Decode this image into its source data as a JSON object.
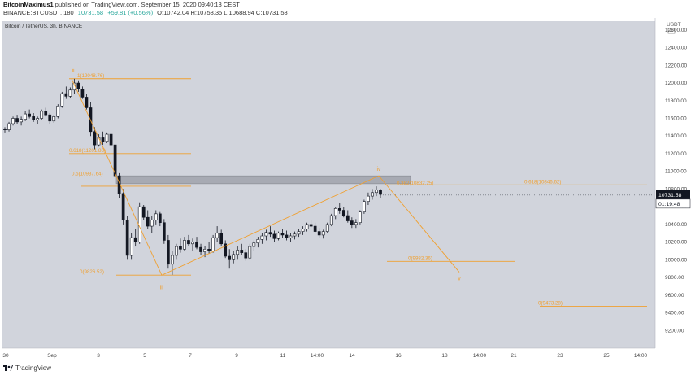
{
  "header": {
    "author": "BitcoinMaximus1",
    "published": "published on TradingView.com, September 15, 2020 09:40:13 CEST",
    "symbol": "BINANCE:BTCUSDT, 180",
    "price": "10731.58",
    "change": "+59.81 (+0.56%)",
    "ohlc": "O:10742.04 H:10758.35 L:10688.94 C:10731.58"
  },
  "chart_data": {
    "type": "candlestick",
    "title": "Bitcoin / TetherUS, 3h, BINANCE",
    "currency": "USDT",
    "ylim": [
      9000,
      12700
    ],
    "y_ticks": [
      "9200.00",
      "9400.00",
      "9600.00",
      "9800.00",
      "10000.00",
      "10200.00",
      "10400.00",
      "10600.00",
      "10800.00",
      "11000.00",
      "11200.00",
      "11400.00",
      "11600.00",
      "11800.00",
      "12000.00",
      "12200.00",
      "12400.00",
      "12600.00"
    ],
    "x_ticks": [
      "30",
      "Sep",
      "3",
      "5",
      "7",
      "9",
      "11",
      "14:00",
      "14",
      "16",
      "18",
      "14:00",
      "21",
      "23",
      "25",
      "14:00"
    ],
    "last_price": "10731.58",
    "countdown": "01:19:48",
    "colors": {
      "up": "#ffffff",
      "down": "#131722",
      "wick": "#131722",
      "fib": "#f0a030",
      "bg": "#d1d4dc"
    },
    "fib_levels": [
      {
        "label": "1(12048.76)",
        "price": 12048.76
      },
      {
        "label": "0.618(11201.86)",
        "price": 11201.86
      },
      {
        "label": "0.5(10937.64)",
        "price": 10937.64
      },
      {
        "label": "0(9826.52)",
        "price": 9826.52
      },
      {
        "label": "0.382(10832.25)",
        "price": 10832.25
      },
      {
        "label": "0.618(10846.62)",
        "price": 10846.62
      },
      {
        "label": "0(9982.36)",
        "price": 9982.36
      },
      {
        "label": "0(9473.28)",
        "price": 9473.28
      }
    ],
    "wave_labels": [
      "ii",
      "iii",
      "iv",
      "v"
    ],
    "resistance_zone": [
      10860,
      10950
    ],
    "candles": [
      [
        11480,
        11500,
        11440,
        11470
      ],
      [
        11470,
        11560,
        11450,
        11540
      ],
      [
        11540,
        11620,
        11520,
        11600
      ],
      [
        11600,
        11640,
        11540,
        11560
      ],
      [
        11560,
        11620,
        11520,
        11590
      ],
      [
        11590,
        11680,
        11570,
        11650
      ],
      [
        11650,
        11700,
        11600,
        11620
      ],
      [
        11620,
        11660,
        11560,
        11580
      ],
      [
        11580,
        11620,
        11540,
        11600
      ],
      [
        11600,
        11700,
        11580,
        11680
      ],
      [
        11680,
        11720,
        11620,
        11640
      ],
      [
        11640,
        11660,
        11540,
        11570
      ],
      [
        11570,
        11640,
        11550,
        11620
      ],
      [
        11620,
        11760,
        11600,
        11740
      ],
      [
        11740,
        11900,
        11720,
        11880
      ],
      [
        11880,
        11960,
        11820,
        11850
      ],
      [
        11850,
        11950,
        11830,
        11920
      ],
      [
        11920,
        12048,
        11880,
        12000
      ],
      [
        12000,
        12030,
        11900,
        11930
      ],
      [
        11930,
        11960,
        11820,
        11840
      ],
      [
        11840,
        11880,
        11700,
        11720
      ],
      [
        11720,
        11780,
        11400,
        11450
      ],
      [
        11450,
        11500,
        11250,
        11300
      ],
      [
        11300,
        11420,
        11280,
        11380
      ],
      [
        11380,
        11450,
        11300,
        11340
      ],
      [
        11340,
        11440,
        11320,
        11420
      ],
      [
        11420,
        11460,
        11280,
        11300
      ],
      [
        11300,
        11340,
        10900,
        10950
      ],
      [
        10950,
        10980,
        10700,
        10750
      ],
      [
        10750,
        10800,
        10400,
        10450
      ],
      [
        10450,
        10500,
        10000,
        10050
      ],
      [
        10050,
        10300,
        10000,
        10250
      ],
      [
        10250,
        10350,
        10150,
        10200
      ],
      [
        10200,
        10650,
        10180,
        10600
      ],
      [
        10600,
        10620,
        10450,
        10480
      ],
      [
        10480,
        10560,
        10350,
        10380
      ],
      [
        10380,
        10500,
        10300,
        10450
      ],
      [
        10450,
        10560,
        10400,
        10520
      ],
      [
        10520,
        10540,
        10380,
        10420
      ],
      [
        10420,
        10460,
        10180,
        10220
      ],
      [
        10220,
        10280,
        9900,
        9950
      ],
      [
        9950,
        10100,
        9830,
        10050
      ],
      [
        10050,
        10180,
        10000,
        10150
      ],
      [
        10150,
        10240,
        10080,
        10120
      ],
      [
        10120,
        10260,
        10100,
        10220
      ],
      [
        10220,
        10280,
        10150,
        10180
      ],
      [
        10180,
        10240,
        10100,
        10200
      ],
      [
        10200,
        10260,
        10120,
        10140
      ],
      [
        10140,
        10180,
        10050,
        10090
      ],
      [
        10090,
        10160,
        10030,
        10120
      ],
      [
        10120,
        10200,
        10070,
        10100
      ],
      [
        10100,
        10280,
        10080,
        10250
      ],
      [
        10250,
        10380,
        10200,
        10300
      ],
      [
        10300,
        10340,
        10150,
        10180
      ],
      [
        10180,
        10220,
        10020,
        10040
      ],
      [
        10040,
        10120,
        9900,
        10000
      ],
      [
        10000,
        10100,
        9960,
        10060
      ],
      [
        10060,
        10150,
        10000,
        10110
      ],
      [
        10110,
        10180,
        10050,
        10080
      ],
      [
        10080,
        10120,
        9990,
        10020
      ],
      [
        10020,
        10180,
        10000,
        10150
      ],
      [
        10150,
        10220,
        10100,
        10190
      ],
      [
        10190,
        10260,
        10140,
        10230
      ],
      [
        10230,
        10300,
        10180,
        10270
      ],
      [
        10270,
        10340,
        10220,
        10310
      ],
      [
        10310,
        10380,
        10260,
        10290
      ],
      [
        10290,
        10330,
        10200,
        10240
      ],
      [
        10240,
        10320,
        10220,
        10300
      ],
      [
        10300,
        10350,
        10250,
        10280
      ],
      [
        10280,
        10330,
        10220,
        10250
      ],
      [
        10250,
        10300,
        10200,
        10270
      ],
      [
        10270,
        10320,
        10230,
        10290
      ],
      [
        10290,
        10350,
        10260,
        10320
      ],
      [
        10320,
        10380,
        10280,
        10350
      ],
      [
        10350,
        10420,
        10320,
        10400
      ],
      [
        10400,
        10450,
        10360,
        10380
      ],
      [
        10380,
        10420,
        10300,
        10320
      ],
      [
        10320,
        10360,
        10250,
        10280
      ],
      [
        10280,
        10340,
        10240,
        10320
      ],
      [
        10320,
        10420,
        10300,
        10400
      ],
      [
        10400,
        10520,
        10380,
        10500
      ],
      [
        10500,
        10600,
        10460,
        10580
      ],
      [
        10580,
        10640,
        10520,
        10560
      ],
      [
        10560,
        10600,
        10480,
        10500
      ],
      [
        10500,
        10560,
        10420,
        10440
      ],
      [
        10440,
        10480,
        10360,
        10400
      ],
      [
        10400,
        10460,
        10360,
        10420
      ],
      [
        10420,
        10560,
        10400,
        10540
      ],
      [
        10540,
        10680,
        10520,
        10660
      ],
      [
        10660,
        10760,
        10620,
        10720
      ],
      [
        10720,
        10800,
        10680,
        10760
      ],
      [
        10760,
        10830,
        10720,
        10790
      ],
      [
        10790,
        10800,
        10700,
        10740
      ]
    ]
  }
}
